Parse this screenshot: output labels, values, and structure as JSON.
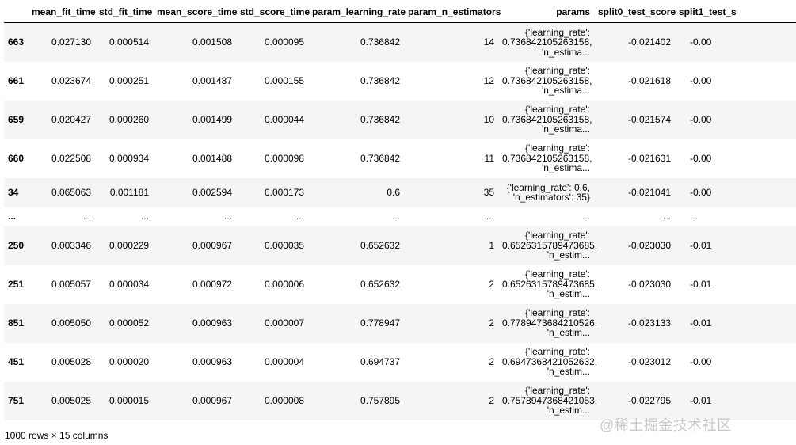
{
  "columns": [
    "",
    "mean_fit_time",
    "std_fit_time",
    "mean_score_time",
    "std_score_time",
    "param_learning_rate",
    "param_n_estimators",
    "params",
    "split0_test_score",
    "split1_test_s"
  ],
  "rows": [
    {
      "index": "663",
      "cells": [
        "0.027130",
        "0.000514",
        "0.001508",
        "0.000095",
        "0.736842",
        "14"
      ],
      "params": [
        "{'learning_rate':",
        "0.736842105263158,",
        "'n_estima..."
      ],
      "split0": "-0.021402",
      "split1": "-0.00"
    },
    {
      "index": "661",
      "cells": [
        "0.023674",
        "0.000251",
        "0.001487",
        "0.000155",
        "0.736842",
        "12"
      ],
      "params": [
        "{'learning_rate':",
        "0.736842105263158,",
        "'n_estima..."
      ],
      "split0": "-0.021618",
      "split1": "-0.00"
    },
    {
      "index": "659",
      "cells": [
        "0.020427",
        "0.000260",
        "0.001499",
        "0.000044",
        "0.736842",
        "10"
      ],
      "params": [
        "{'learning_rate':",
        "0.736842105263158,",
        "'n_estima..."
      ],
      "split0": "-0.021574",
      "split1": "-0.00"
    },
    {
      "index": "660",
      "cells": [
        "0.022508",
        "0.000934",
        "0.001488",
        "0.000098",
        "0.736842",
        "11"
      ],
      "params": [
        "{'learning_rate':",
        "0.736842105263158,",
        "'n_estima..."
      ],
      "split0": "-0.021631",
      "split1": "-0.00"
    },
    {
      "index": "34",
      "cells": [
        "0.065063",
        "0.001181",
        "0.002594",
        "0.000173",
        "0.6",
        "35"
      ],
      "params": [
        "{'learning_rate': 0.6,",
        "'n_estimators': 35}"
      ],
      "split0": "-0.021041",
      "split1": "-0.00"
    },
    {
      "index": "...",
      "cells": [
        "...",
        "...",
        "...",
        "...",
        "...",
        "..."
      ],
      "params": [
        "..."
      ],
      "split0": "...",
      "split1": "..."
    },
    {
      "index": "250",
      "cells": [
        "0.003346",
        "0.000229",
        "0.000967",
        "0.000035",
        "0.652632",
        "1"
      ],
      "params": [
        "{'learning_rate':",
        "0.6526315789473685,",
        "'n_estim..."
      ],
      "split0": "-0.023030",
      "split1": "-0.01"
    },
    {
      "index": "251",
      "cells": [
        "0.005057",
        "0.000034",
        "0.000972",
        "0.000006",
        "0.652632",
        "2"
      ],
      "params": [
        "{'learning_rate':",
        "0.6526315789473685,",
        "'n_estim..."
      ],
      "split0": "-0.023030",
      "split1": "-0.01"
    },
    {
      "index": "851",
      "cells": [
        "0.005050",
        "0.000052",
        "0.000963",
        "0.000007",
        "0.778947",
        "2"
      ],
      "params": [
        "{'learning_rate':",
        "0.7789473684210526,",
        "'n_estim..."
      ],
      "split0": "-0.023133",
      "split1": "-0.01"
    },
    {
      "index": "451",
      "cells": [
        "0.005028",
        "0.000020",
        "0.000963",
        "0.000004",
        "0.694737",
        "2"
      ],
      "params": [
        "{'learning_rate':",
        "0.6947368421052632,",
        "'n_estim..."
      ],
      "split0": "-0.023012",
      "split1": "-0.00"
    },
    {
      "index": "751",
      "cells": [
        "0.005025",
        "0.000015",
        "0.000967",
        "0.000008",
        "0.757895",
        "2"
      ],
      "params": [
        "{'learning_rate':",
        "0.7578947368421053,",
        "'n_estim..."
      ],
      "split0": "-0.022795",
      "split1": "-0.01"
    }
  ],
  "footer": "1000 rows × 15 columns",
  "watermark": "@稀土掘金技术社区"
}
